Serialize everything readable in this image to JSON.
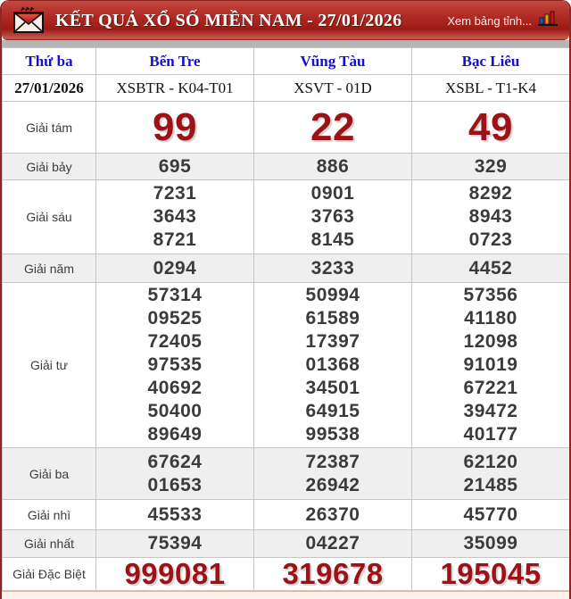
{
  "header": {
    "title": "KẾT QUẢ XỔ SỐ MIỀN NAM - 27/01/2026",
    "link_label": "Xem bảng tỉnh...",
    "icons": [
      "envelope-icon",
      "bar-chart-icon"
    ]
  },
  "table": {
    "day_label": "Thứ ba",
    "date": "27/01/2026",
    "provinces": [
      {
        "name": "Bến Tre",
        "code": "XSBTR - K04-T01"
      },
      {
        "name": "Vũng Tàu",
        "code": "XSVT - 01D"
      },
      {
        "name": "Bạc Liêu",
        "code": "XSBL - T1-K4"
      }
    ],
    "prizes": [
      {
        "label": "Giải tám",
        "style": "big-red",
        "values": [
          [
            "99"
          ],
          [
            "22"
          ],
          [
            "49"
          ]
        ]
      },
      {
        "label": "Giải bảy",
        "style": "",
        "values": [
          [
            "695"
          ],
          [
            "886"
          ],
          [
            "329"
          ]
        ]
      },
      {
        "label": "Giải sáu",
        "style": "",
        "values": [
          [
            "7231",
            "3643",
            "8721"
          ],
          [
            "0901",
            "3763",
            "8145"
          ],
          [
            "8292",
            "8943",
            "0723"
          ]
        ]
      },
      {
        "label": "Giải năm",
        "style": "",
        "values": [
          [
            "0294"
          ],
          [
            "3233"
          ],
          [
            "4452"
          ]
        ]
      },
      {
        "label": "Giải tư",
        "style": "",
        "values": [
          [
            "57314",
            "09525",
            "72405",
            "97535",
            "40692",
            "50400",
            "89649"
          ],
          [
            "50994",
            "61589",
            "17397",
            "01368",
            "34501",
            "64915",
            "99538"
          ],
          [
            "57356",
            "41180",
            "12098",
            "91019",
            "67221",
            "39472",
            "40177"
          ]
        ]
      },
      {
        "label": "Giải ba",
        "style": "",
        "values": [
          [
            "67624",
            "01653"
          ],
          [
            "72387",
            "26942"
          ],
          [
            "62120",
            "21485"
          ]
        ]
      },
      {
        "label": "Giải nhì",
        "style": "",
        "values": [
          [
            "45533"
          ],
          [
            "26370"
          ],
          [
            "45770"
          ]
        ]
      },
      {
        "label": "Giải nhất",
        "style": "",
        "values": [
          [
            "75394"
          ],
          [
            "04227"
          ],
          [
            "35099"
          ]
        ]
      },
      {
        "label": "Giải Đặc Biệt",
        "style": "special-red",
        "values": [
          [
            "999081"
          ],
          [
            "319678"
          ],
          [
            "195045"
          ]
        ]
      }
    ]
  },
  "colors": {
    "banner_red": "#a6201b",
    "border_maroon": "#8c2724",
    "prize_dark_red": "#9d1216",
    "header_blue": "#1111cc",
    "row_alt_gray": "#efefef",
    "number_gray": "#3b3b3b",
    "chart_icon_bars": [
      "#2255cc",
      "#f59a00",
      "#cc1510"
    ]
  }
}
